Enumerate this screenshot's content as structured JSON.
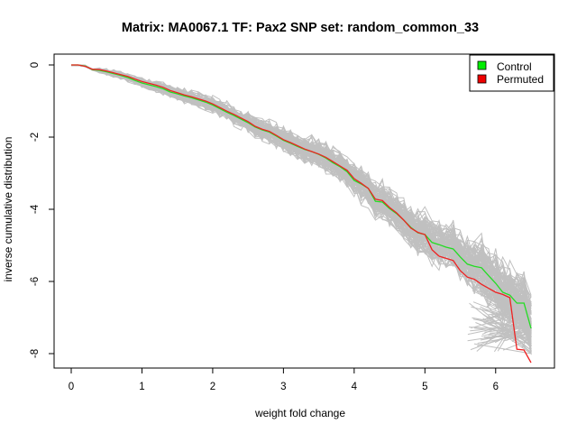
{
  "chart_data": {
    "type": "line",
    "title": "Matrix: MA0067.1 TF: Pax2 SNP set: random_common_33",
    "xlabel": "weight fold change",
    "ylabel": "inverse cumulative distribution",
    "xlim": [
      0,
      6.5
    ],
    "ylim": [
      -8.2,
      0
    ],
    "xticks": [
      "0",
      "1",
      "2",
      "3",
      "4",
      "5",
      "6"
    ],
    "yticks": [
      "0",
      "-2",
      "-4",
      "-6",
      "-8"
    ],
    "grid": false,
    "legend_position": "top-right",
    "legend": [
      {
        "label": "Control",
        "color": "#00ee00"
      },
      {
        "label": "Permuted",
        "color": "#ee0000"
      }
    ],
    "background_series_color": "#c0c0c0",
    "background_series_count": 100,
    "series": [
      {
        "name": "Control",
        "color": "#22dd22",
        "x": [
          0.0,
          0.1,
          0.2,
          0.3,
          0.4,
          0.5,
          0.6,
          0.7,
          0.8,
          0.9,
          1.0,
          1.1,
          1.2,
          1.3,
          1.4,
          1.5,
          1.6,
          1.7,
          1.8,
          1.9,
          2.0,
          2.1,
          2.2,
          2.3,
          2.4,
          2.5,
          2.6,
          2.7,
          2.8,
          2.9,
          3.0,
          3.1,
          3.2,
          3.3,
          3.4,
          3.5,
          3.6,
          3.7,
          3.8,
          3.9,
          4.0,
          4.1,
          4.2,
          4.3,
          4.4,
          4.5,
          4.6,
          4.7,
          4.8,
          4.9,
          5.0,
          5.1,
          5.2,
          5.3,
          5.4,
          5.5,
          5.6,
          5.7,
          5.8,
          5.9,
          6.0,
          6.1,
          6.2,
          6.3,
          6.4,
          6.5
        ],
        "y": [
          0.0,
          0.0,
          -0.03,
          -0.13,
          -0.15,
          -0.19,
          -0.24,
          -0.29,
          -0.35,
          -0.43,
          -0.5,
          -0.55,
          -0.6,
          -0.66,
          -0.75,
          -0.8,
          -0.86,
          -0.91,
          -0.97,
          -1.03,
          -1.11,
          -1.21,
          -1.31,
          -1.4,
          -1.5,
          -1.6,
          -1.72,
          -1.8,
          -1.86,
          -1.97,
          -2.09,
          -2.17,
          -2.26,
          -2.34,
          -2.4,
          -2.48,
          -2.58,
          -2.71,
          -2.82,
          -2.96,
          -3.2,
          -3.3,
          -3.42,
          -3.78,
          -3.8,
          -3.98,
          -4.12,
          -4.3,
          -4.5,
          -4.65,
          -4.7,
          -4.92,
          -4.98,
          -5.05,
          -5.1,
          -5.32,
          -5.52,
          -5.58,
          -5.62,
          -5.84,
          -6.05,
          -6.3,
          -6.38,
          -6.6,
          -6.6,
          -7.3
        ]
      },
      {
        "name": "Permuted",
        "color": "#ee2222",
        "x": [
          0.0,
          0.1,
          0.2,
          0.3,
          0.4,
          0.5,
          0.6,
          0.7,
          0.8,
          0.9,
          1.0,
          1.1,
          1.2,
          1.3,
          1.4,
          1.5,
          1.6,
          1.7,
          1.8,
          1.9,
          2.0,
          2.1,
          2.2,
          2.3,
          2.4,
          2.5,
          2.6,
          2.7,
          2.8,
          2.9,
          3.0,
          3.1,
          3.2,
          3.3,
          3.4,
          3.5,
          3.6,
          3.7,
          3.8,
          3.9,
          4.0,
          4.1,
          4.2,
          4.3,
          4.4,
          4.5,
          4.6,
          4.7,
          4.8,
          4.9,
          5.0,
          5.1,
          5.2,
          5.3,
          5.4,
          5.5,
          5.6,
          5.7,
          5.8,
          5.9,
          6.0,
          6.1,
          6.2,
          6.3,
          6.4,
          6.5
        ],
        "y": [
          0.0,
          0.0,
          -0.04,
          -0.12,
          -0.13,
          -0.17,
          -0.22,
          -0.27,
          -0.32,
          -0.39,
          -0.46,
          -0.51,
          -0.56,
          -0.62,
          -0.71,
          -0.77,
          -0.83,
          -0.88,
          -0.94,
          -1.0,
          -1.08,
          -1.18,
          -1.28,
          -1.37,
          -1.47,
          -1.57,
          -1.7,
          -1.78,
          -1.84,
          -1.95,
          -2.07,
          -2.15,
          -2.24,
          -2.33,
          -2.4,
          -2.47,
          -2.56,
          -2.68,
          -2.8,
          -2.92,
          -3.15,
          -3.28,
          -3.42,
          -3.72,
          -3.76,
          -3.95,
          -4.1,
          -4.3,
          -4.52,
          -4.64,
          -4.7,
          -5.12,
          -5.3,
          -5.36,
          -5.42,
          -5.7,
          -5.88,
          -5.94,
          -6.08,
          -6.19,
          -6.3,
          -6.36,
          -6.45,
          -7.88,
          -7.9,
          -8.25
        ]
      }
    ]
  }
}
